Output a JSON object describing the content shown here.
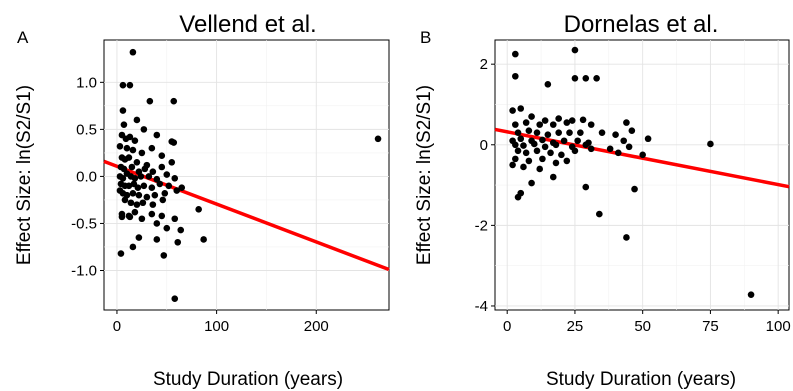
{
  "chart_data": [
    {
      "panel": "A",
      "type": "scatter",
      "title": "Vellend et al.",
      "xlabel": "Study Duration (years)",
      "ylabel": "Effect Size: ln(S2/S1)",
      "xlim": [
        -13,
        273
      ],
      "ylim": [
        -1.42,
        1.45
      ],
      "xticks": [
        0,
        100,
        200
      ],
      "yticks": [
        -1.0,
        -0.5,
        0.0,
        0.5,
        1.0
      ],
      "xtick_labels": [
        "0",
        "100",
        "200"
      ],
      "ytick_labels": [
        "-1.0",
        "-0.5",
        "0.0",
        "0.5",
        "1.0"
      ],
      "grid": true,
      "colors": {
        "points": "#000000",
        "fit_line": "#ff0000"
      },
      "fit_line": {
        "x": [
          -13,
          273
        ],
        "y": [
          0.16,
          -0.99
        ]
      },
      "points": [
        [
          16,
          1.32
        ],
        [
          6,
          0.97
        ],
        [
          13,
          0.97
        ],
        [
          33,
          0.8
        ],
        [
          57,
          0.8
        ],
        [
          6,
          0.7
        ],
        [
          20,
          0.6
        ],
        [
          7,
          0.55
        ],
        [
          27,
          0.5
        ],
        [
          40,
          0.44
        ],
        [
          5,
          0.44
        ],
        [
          9,
          0.4
        ],
        [
          13,
          0.42
        ],
        [
          18,
          0.38
        ],
        [
          55,
          0.37
        ],
        [
          57,
          0.36
        ],
        [
          3,
          0.32
        ],
        [
          10,
          0.3
        ],
        [
          16,
          0.28
        ],
        [
          25,
          0.25
        ],
        [
          35,
          0.3
        ],
        [
          45,
          0.22
        ],
        [
          5,
          0.2
        ],
        [
          8,
          0.18
        ],
        [
          12,
          0.2
        ],
        [
          20,
          0.15
        ],
        [
          30,
          0.12
        ],
        [
          55,
          0.15
        ],
        [
          4,
          0.1
        ],
        [
          7,
          0.08
        ],
        [
          15,
          0.1
        ],
        [
          22,
          0.05
        ],
        [
          28,
          0.08
        ],
        [
          36,
          0.05
        ],
        [
          45,
          0.1
        ],
        [
          50,
          0.02
        ],
        [
          3,
          0.0
        ],
        [
          6,
          -0.02
        ],
        [
          10,
          0.03
        ],
        [
          14,
          0.0
        ],
        [
          18,
          -0.02
        ],
        [
          24,
          0.0
        ],
        [
          32,
          0.0
        ],
        [
          40,
          -0.03
        ],
        [
          58,
          -0.02
        ],
        [
          4,
          -0.08
        ],
        [
          8,
          -0.1
        ],
        [
          12,
          -0.1
        ],
        [
          17,
          -0.08
        ],
        [
          21,
          -0.12
        ],
        [
          27,
          -0.1
        ],
        [
          35,
          -0.12
        ],
        [
          43,
          -0.08
        ],
        [
          52,
          -0.1
        ],
        [
          3,
          -0.15
        ],
        [
          6,
          -0.18
        ],
        [
          10,
          -0.2
        ],
        [
          16,
          -0.18
        ],
        [
          22,
          -0.2
        ],
        [
          30,
          -0.22
        ],
        [
          38,
          -0.2
        ],
        [
          48,
          -0.18
        ],
        [
          60,
          -0.15
        ],
        [
          65,
          -0.12
        ],
        [
          8,
          -0.25
        ],
        [
          14,
          -0.28
        ],
        [
          20,
          -0.3
        ],
        [
          26,
          -0.28
        ],
        [
          36,
          -0.3
        ],
        [
          46,
          -0.25
        ],
        [
          5,
          -0.4
        ],
        [
          12,
          -0.42
        ],
        [
          18,
          -0.38
        ],
        [
          25,
          -0.45
        ],
        [
          35,
          -0.4
        ],
        [
          45,
          -0.42
        ],
        [
          58,
          -0.45
        ],
        [
          82,
          -0.35
        ],
        [
          5,
          -0.43
        ],
        [
          13,
          -0.43
        ],
        [
          40,
          -0.5
        ],
        [
          50,
          -0.55
        ],
        [
          64,
          -0.57
        ],
        [
          22,
          -0.65
        ],
        [
          40,
          -0.67
        ],
        [
          61,
          -0.7
        ],
        [
          87,
          -0.67
        ],
        [
          16,
          -0.75
        ],
        [
          4,
          -0.82
        ],
        [
          47,
          -0.84
        ],
        [
          58,
          -1.3
        ],
        [
          262,
          0.4
        ]
      ]
    },
    {
      "panel": "B",
      "type": "scatter",
      "title": "Dornelas et al.",
      "xlabel": "Study Duration (years)",
      "ylabel": "Effect Size: ln(S2/S1)",
      "xlim": [
        -4.5,
        104
      ],
      "ylim": [
        -4.1,
        2.6
      ],
      "xticks": [
        0,
        25,
        50,
        75,
        100
      ],
      "yticks": [
        -4,
        -2,
        0,
        2
      ],
      "xtick_labels": [
        "0",
        "25",
        "50",
        "75",
        "100"
      ],
      "ytick_labels": [
        "-4",
        "-2",
        "0",
        "2"
      ],
      "grid": true,
      "colors": {
        "points": "#000000",
        "fit_line": "#ff0000"
      },
      "fit_line": {
        "x": [
          -4.5,
          104
        ],
        "y": [
          0.38,
          -1.04
        ]
      },
      "points": [
        [
          3,
          2.25
        ],
        [
          25,
          2.35
        ],
        [
          3,
          1.7
        ],
        [
          25,
          1.65
        ],
        [
          29,
          1.65
        ],
        [
          33,
          1.65
        ],
        [
          15,
          1.5
        ],
        [
          2,
          0.85
        ],
        [
          5,
          0.9
        ],
        [
          9,
          0.7
        ],
        [
          14,
          0.6
        ],
        [
          19,
          0.65
        ],
        [
          24,
          0.6
        ],
        [
          28,
          0.62
        ],
        [
          3,
          0.5
        ],
        [
          7,
          0.55
        ],
        [
          12,
          0.5
        ],
        [
          17,
          0.5
        ],
        [
          22,
          0.55
        ],
        [
          31,
          0.5
        ],
        [
          44,
          0.55
        ],
        [
          4,
          0.3
        ],
        [
          8,
          0.35
        ],
        [
          11,
          0.3
        ],
        [
          15,
          0.25
        ],
        [
          19,
          0.3
        ],
        [
          23,
          0.3
        ],
        [
          27,
          0.3
        ],
        [
          35,
          0.3
        ],
        [
          40,
          0.25
        ],
        [
          46,
          0.35
        ],
        [
          2,
          0.1
        ],
        [
          5,
          0.15
        ],
        [
          9,
          0.1
        ],
        [
          13,
          0.12
        ],
        [
          17,
          0.05
        ],
        [
          21,
          0.1
        ],
        [
          26,
          0.1
        ],
        [
          30,
          0.05
        ],
        [
          43,
          0.1
        ],
        [
          52,
          0.15
        ],
        [
          3,
          0.0
        ],
        [
          6,
          -0.02
        ],
        [
          10,
          0.02
        ],
        [
          14,
          -0.05
        ],
        [
          18,
          0.0
        ],
        [
          24,
          -0.05
        ],
        [
          29,
          0.0
        ],
        [
          38,
          -0.1
        ],
        [
          45,
          -0.05
        ],
        [
          75,
          0.02
        ],
        [
          4,
          -0.15
        ],
        [
          7,
          -0.2
        ],
        [
          11,
          -0.15
        ],
        [
          16,
          -0.2
        ],
        [
          20,
          -0.25
        ],
        [
          25,
          -0.15
        ],
        [
          31,
          -0.1
        ],
        [
          41,
          -0.2
        ],
        [
          50,
          -0.25
        ],
        [
          3,
          -0.35
        ],
        [
          8,
          -0.4
        ],
        [
          13,
          -0.35
        ],
        [
          18,
          -0.45
        ],
        [
          22,
          -0.4
        ],
        [
          6,
          -0.55
        ],
        [
          12,
          -0.6
        ],
        [
          2,
          -0.5
        ],
        [
          17,
          -0.8
        ],
        [
          9,
          -0.95
        ],
        [
          4,
          -1.3
        ],
        [
          5,
          -1.2
        ],
        [
          29,
          -1.05
        ],
        [
          47,
          -1.1
        ],
        [
          34,
          -1.72
        ],
        [
          44,
          -2.3
        ],
        [
          90,
          -3.72
        ]
      ]
    }
  ]
}
